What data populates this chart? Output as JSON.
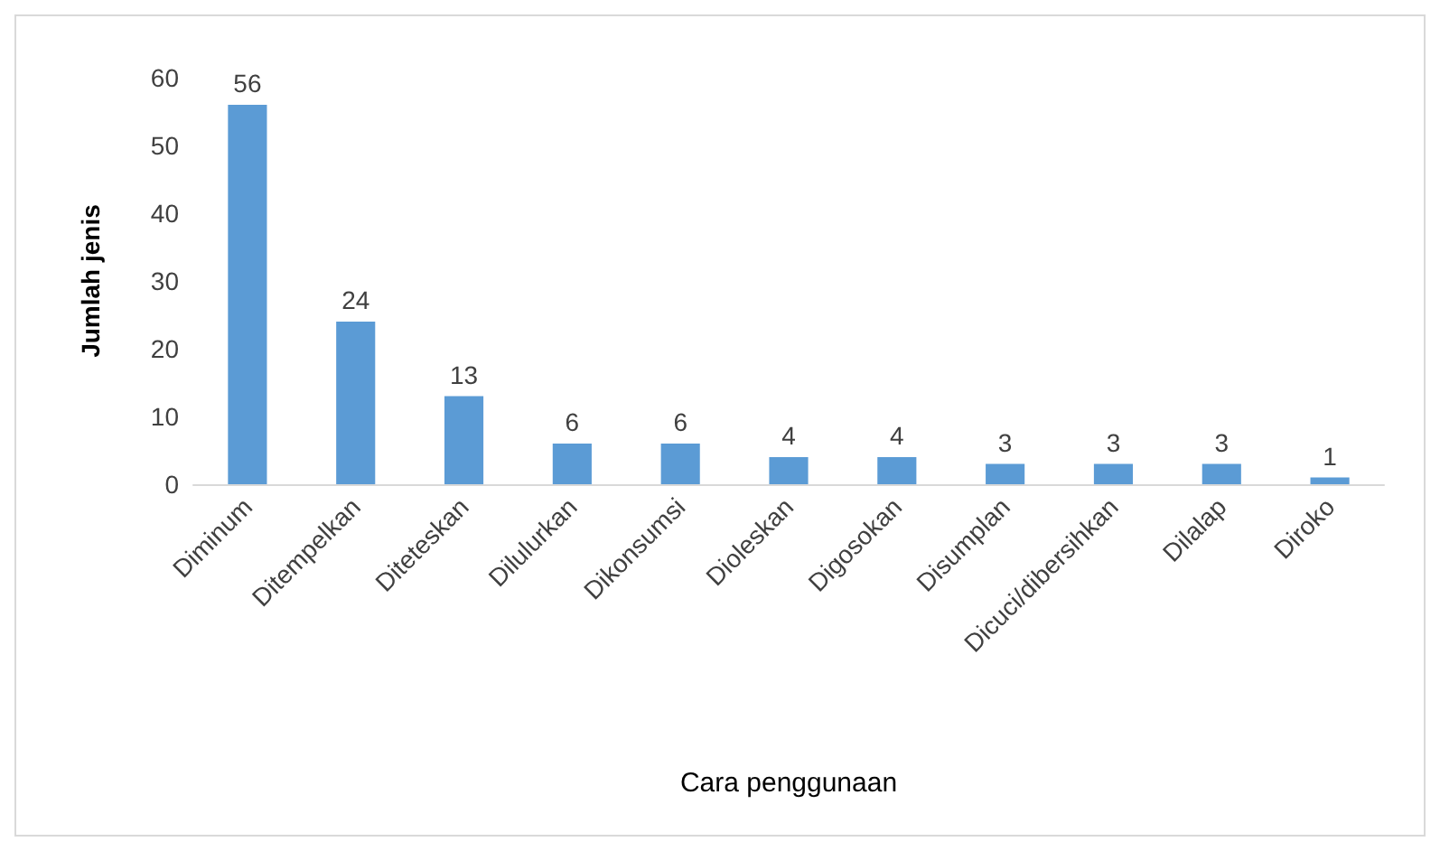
{
  "chart_data": {
    "type": "bar",
    "xlabel": "Cara penggunaan",
    "ylabel": "Jumlah jenis",
    "categories": [
      "Diminum",
      "Ditempelkan",
      "Diteteskan",
      "Dilulurkan",
      "Dikonsumsi",
      "Dioleskan",
      "Digosokan",
      "Disumplan",
      "Dicuci/dibersihkan",
      "Dilalap",
      "Diroko"
    ],
    "values": [
      56,
      24,
      13,
      6,
      6,
      4,
      4,
      3,
      3,
      3,
      1
    ],
    "color": "#5b9bd5",
    "ylim": [
      0,
      60
    ],
    "yticks": [
      0,
      10,
      20,
      30,
      40,
      50,
      60
    ],
    "grid": false,
    "data_labels": true
  }
}
